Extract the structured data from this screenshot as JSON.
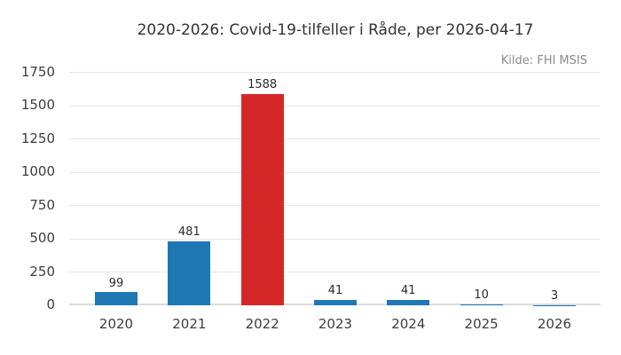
{
  "header": {
    "title": "2020-2026: Covid-19-tilfeller i Råde, per 2026-04-17",
    "source": "Kilde: FHI MSIS"
  },
  "chart_data": {
    "type": "bar",
    "title": "2020-2026: Covid-19-tilfeller i Råde, per 2026-04-17",
    "annotation": "Kilde: FHI MSIS",
    "categories": [
      "2020",
      "2021",
      "2022",
      "2023",
      "2024",
      "2025",
      "2026"
    ],
    "values": [
      99,
      481,
      1588,
      41,
      41,
      10,
      3
    ],
    "value_labels": [
      "99",
      "481",
      "1588",
      "41",
      "41",
      "10",
      "3"
    ],
    "bar_colors": [
      "#1f77b4",
      "#1f77b4",
      "#d62728",
      "#1f77b4",
      "#1f77b4",
      "#1f77b4",
      "#1f77b4"
    ],
    "xlabel": "",
    "ylabel": "",
    "ylim": [
      0,
      1750
    ],
    "yticks": [
      0,
      250,
      500,
      750,
      1000,
      1250,
      1500,
      1750
    ],
    "grid": true,
    "legend": null
  },
  "colors": {
    "background": "#ffffff",
    "bar_default": "#1f77b4",
    "bar_highlight": "#d62728",
    "gridline": "#e7e7e7",
    "baseline": "#dbdbdb",
    "title_text": "#333333",
    "tick_text": "#3d3d3d",
    "value_text": "#2b2b2b",
    "source_text": "#8a8a8a"
  }
}
